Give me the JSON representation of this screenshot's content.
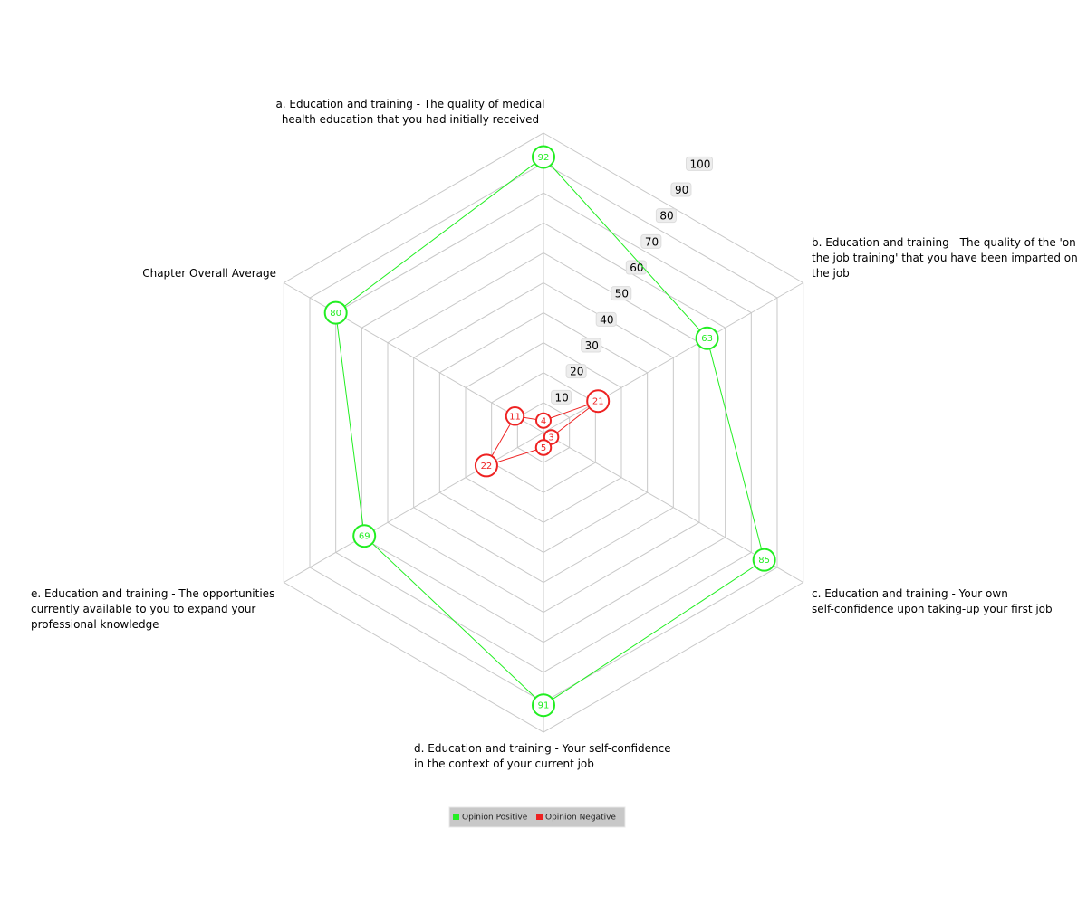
{
  "chart_data": {
    "type": "radar",
    "axes": [
      [
        "a. Education and training - The quality of medical",
        "health education that you had initially received"
      ],
      [
        "b. Education and training - The quality of the 'on",
        "the job training' that you have been imparted on",
        "the job"
      ],
      [
        "c. Education and training - Your own",
        "self-confidence upon taking-up your first job"
      ],
      [
        "d. Education and training - Your self-confidence",
        "in the context of your current job"
      ],
      [
        "e. Education and training - The opportunities",
        "currently available to you to expand your",
        "professional knowledge"
      ],
      [
        "Chapter Overall Average"
      ]
    ],
    "rlim": [
      0,
      100
    ],
    "ticks": [
      "10",
      "20",
      "30",
      "40",
      "50",
      "60",
      "70",
      "80",
      "90",
      "100"
    ],
    "tick_values": [
      10,
      20,
      30,
      40,
      50,
      60,
      70,
      80,
      90,
      100
    ],
    "grid": true,
    "legend_position": "bottom-center",
    "series": [
      {
        "name": "Opinion Positive",
        "color": "#22ee22",
        "values": [
          92,
          63,
          85,
          91,
          69,
          80
        ]
      },
      {
        "name": "Opinion Negative",
        "color": "#ee2222",
        "values": [
          4,
          21,
          3,
          5,
          22,
          11
        ]
      }
    ]
  }
}
